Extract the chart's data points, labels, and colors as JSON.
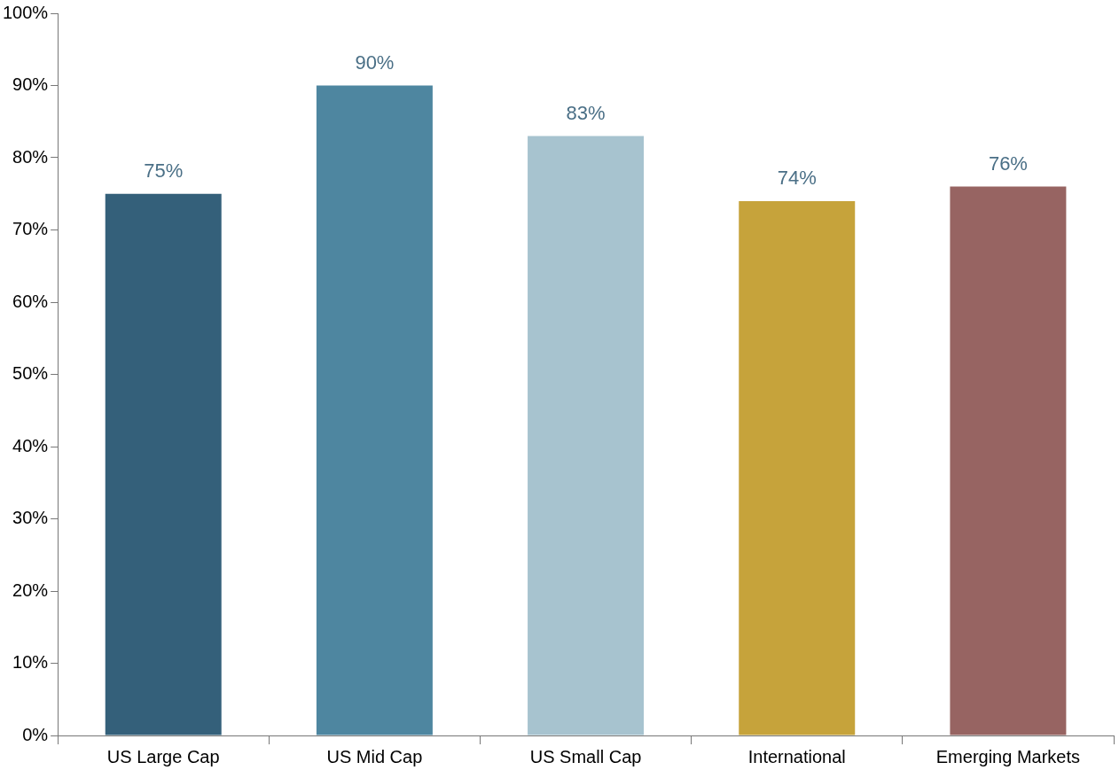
{
  "chart_data": {
    "type": "bar",
    "categories": [
      "US Large Cap",
      "US Mid Cap",
      "US Small Cap",
      "International",
      "Emerging Markets"
    ],
    "values": [
      75,
      90,
      83,
      74,
      76
    ],
    "colors": [
      "#34607a",
      "#4e86a0",
      "#a7c3cf",
      "#c6a33b",
      "#976462"
    ],
    "value_labels": [
      "75%",
      "90%",
      "83%",
      "74%",
      "76%"
    ],
    "ylim": [
      0,
      100
    ],
    "yticks": [
      {
        "value": 0,
        "label": "0%"
      },
      {
        "value": 10,
        "label": "10%"
      },
      {
        "value": 20,
        "label": "20%"
      },
      {
        "value": 30,
        "label": "30%"
      },
      {
        "value": 40,
        "label": "40%"
      },
      {
        "value": 50,
        "label": "50%"
      },
      {
        "value": 60,
        "label": "60%"
      },
      {
        "value": 70,
        "label": "70%"
      },
      {
        "value": 80,
        "label": "80%"
      },
      {
        "value": 90,
        "label": "90%"
      },
      {
        "value": 100,
        "label": "100%"
      }
    ],
    "grid": false,
    "legend": false
  }
}
